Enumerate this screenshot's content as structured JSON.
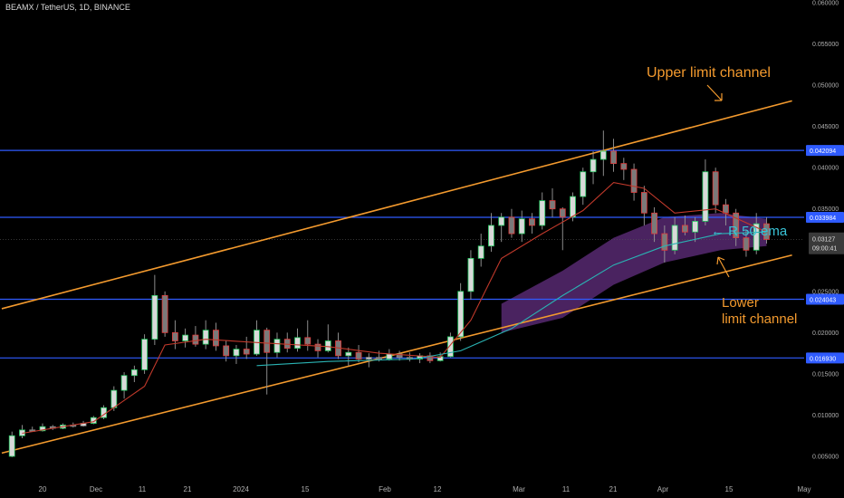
{
  "header": {
    "title": "BEAMX / TetherUS, 1D, BINANCE"
  },
  "colors": {
    "background": "#000000",
    "up_candle": "#22c55e",
    "down_candle": "#e23a3a",
    "doji_candle": "#8a8a8a",
    "channel": "#f39a2e",
    "level": "#2f5bff",
    "ema_short": "#c0392b",
    "ema_50": "#2ab3b3",
    "ribbon": "#7b3aa0",
    "text_muted": "#b0b0b0",
    "annotation_cyan": "#39c3d7"
  },
  "annotations": {
    "upper_channel": "Upper limit channel",
    "ema": "← R 50 ema",
    "lower_line1": "Lower",
    "lower_line2": "limit channel"
  },
  "price_labels": {
    "current_price": "0.03127",
    "countdown": "09:00:41"
  },
  "chart_data": {
    "type": "candlestick",
    "title": "BEAMX / TetherUS, 1D, BINANCE",
    "ylim": [
      0.0027,
      0.06
    ],
    "y_scale": "linear",
    "y_ticks": [
      "0.005000",
      "0.010000",
      "0.015000",
      "0.020000",
      "0.025000",
      "0.030000",
      "0.035000",
      "0.040000",
      "0.045000",
      "0.050000",
      "0.055000",
      "0.060000"
    ],
    "x_tick_labels": [
      "20",
      "Dec",
      "11",
      "21",
      "2024",
      "15",
      "Feb",
      "12",
      "Mar",
      "11",
      "21",
      "Apr",
      "15",
      "May"
    ],
    "horizontal_levels": [
      0.042094,
      0.033984,
      0.024043,
      0.01693
    ],
    "horizontal_level_labels": [
      "0.042094",
      "0.033984",
      "0.024043",
      "0.016930"
    ],
    "channel_upper": [
      [
        "2023-11-12",
        0.0229
      ],
      [
        "2024-04-15",
        0.0481
      ]
    ],
    "channel_lower": [
      [
        "2023-11-12",
        0.0054
      ],
      [
        "2024-04-15",
        0.0294
      ]
    ],
    "ohlc_daily_approx": [
      [
        "2023-11-14",
        0.005,
        0.008,
        0.0049,
        0.0075
      ],
      [
        "2023-11-16",
        0.0075,
        0.0088,
        0.0072,
        0.0082
      ],
      [
        "2023-11-18",
        0.0082,
        0.0086,
        0.008,
        0.0081
      ],
      [
        "2023-11-20",
        0.0081,
        0.009,
        0.008,
        0.0086
      ],
      [
        "2023-11-22",
        0.0086,
        0.0088,
        0.0082,
        0.0084
      ],
      [
        "2023-11-24",
        0.0084,
        0.009,
        0.0083,
        0.0088
      ],
      [
        "2023-11-26",
        0.0088,
        0.0091,
        0.0085,
        0.0087
      ],
      [
        "2023-11-28",
        0.0087,
        0.0093,
        0.0086,
        0.009
      ],
      [
        "2023-11-30",
        0.009,
        0.0099,
        0.0089,
        0.0097
      ],
      [
        "2023-12-02",
        0.0097,
        0.0112,
        0.0095,
        0.0109
      ],
      [
        "2023-12-04",
        0.0109,
        0.0135,
        0.0105,
        0.013
      ],
      [
        "2023-12-06",
        0.013,
        0.0152,
        0.012,
        0.0148
      ],
      [
        "2023-12-08",
        0.0148,
        0.016,
        0.014,
        0.0155
      ],
      [
        "2023-12-10",
        0.0155,
        0.0198,
        0.015,
        0.0192
      ],
      [
        "2023-12-12",
        0.0192,
        0.027,
        0.0185,
        0.0245
      ],
      [
        "2023-12-14",
        0.0245,
        0.025,
        0.0195,
        0.02
      ],
      [
        "2023-12-16",
        0.02,
        0.0215,
        0.018,
        0.019
      ],
      [
        "2023-12-18",
        0.019,
        0.0205,
        0.0182,
        0.0197
      ],
      [
        "2023-12-20",
        0.0197,
        0.0208,
        0.0183,
        0.0186
      ],
      [
        "2023-12-22",
        0.0186,
        0.0215,
        0.018,
        0.0203
      ],
      [
        "2023-12-24",
        0.0203,
        0.0212,
        0.0178,
        0.0184
      ],
      [
        "2023-12-26",
        0.0184,
        0.019,
        0.0165,
        0.0172
      ],
      [
        "2023-12-28",
        0.0172,
        0.0185,
        0.0162,
        0.018
      ],
      [
        "2023-12-30",
        0.018,
        0.0195,
        0.0168,
        0.0174
      ],
      [
        "2024-01-01",
        0.0174,
        0.0215,
        0.0172,
        0.0203
      ],
      [
        "2024-01-03",
        0.0203,
        0.0206,
        0.0125,
        0.0176
      ],
      [
        "2024-01-05",
        0.0176,
        0.02,
        0.017,
        0.0192
      ],
      [
        "2024-01-07",
        0.0192,
        0.02,
        0.0176,
        0.0181
      ],
      [
        "2024-01-09",
        0.0181,
        0.0205,
        0.0177,
        0.0194
      ],
      [
        "2024-01-11",
        0.0194,
        0.0215,
        0.0178,
        0.0186
      ],
      [
        "2024-01-13",
        0.0186,
        0.0192,
        0.017,
        0.0178
      ],
      [
        "2024-01-15",
        0.0178,
        0.021,
        0.0176,
        0.019
      ],
      [
        "2024-01-17",
        0.019,
        0.02,
        0.0168,
        0.0172
      ],
      [
        "2024-01-19",
        0.0172,
        0.0182,
        0.016,
        0.0176
      ],
      [
        "2024-01-21",
        0.0176,
        0.0185,
        0.0164,
        0.0168
      ],
      [
        "2024-01-23",
        0.0168,
        0.0175,
        0.0158,
        0.017
      ],
      [
        "2024-01-25",
        0.017,
        0.0178,
        0.0165,
        0.0168
      ],
      [
        "2024-01-27",
        0.0168,
        0.018,
        0.0166,
        0.0174
      ],
      [
        "2024-01-29",
        0.0174,
        0.0178,
        0.0166,
        0.017
      ],
      [
        "2024-01-31",
        0.017,
        0.0176,
        0.0165,
        0.0168
      ],
      [
        "2024-02-02",
        0.0168,
        0.0175,
        0.0163,
        0.0172
      ],
      [
        "2024-02-04",
        0.0172,
        0.0176,
        0.0163,
        0.0166
      ],
      [
        "2024-02-06",
        0.0166,
        0.0176,
        0.0165,
        0.0171
      ],
      [
        "2024-02-08",
        0.0171,
        0.02,
        0.017,
        0.0195
      ],
      [
        "2024-02-10",
        0.0195,
        0.026,
        0.019,
        0.025
      ],
      [
        "2024-02-12",
        0.025,
        0.03,
        0.024,
        0.029
      ],
      [
        "2024-02-14",
        0.029,
        0.032,
        0.028,
        0.0305
      ],
      [
        "2024-02-16",
        0.0305,
        0.0345,
        0.0298,
        0.033
      ],
      [
        "2024-02-18",
        0.033,
        0.0345,
        0.031,
        0.034
      ],
      [
        "2024-02-20",
        0.034,
        0.035,
        0.0315,
        0.032
      ],
      [
        "2024-02-22",
        0.032,
        0.0348,
        0.031,
        0.0338
      ],
      [
        "2024-02-24",
        0.0338,
        0.0345,
        0.032,
        0.033
      ],
      [
        "2024-02-26",
        0.033,
        0.037,
        0.0325,
        0.036
      ],
      [
        "2024-02-28",
        0.036,
        0.0375,
        0.034,
        0.035
      ],
      [
        "2024-03-01",
        0.035,
        0.0352,
        0.03,
        0.034
      ],
      [
        "2024-03-03",
        0.034,
        0.037,
        0.0335,
        0.0365
      ],
      [
        "2024-03-05",
        0.0365,
        0.04,
        0.0355,
        0.0395
      ],
      [
        "2024-03-07",
        0.0395,
        0.042,
        0.038,
        0.041
      ],
      [
        "2024-03-09",
        0.041,
        0.0445,
        0.039,
        0.042
      ],
      [
        "2024-03-11",
        0.042,
        0.0435,
        0.0395,
        0.0405
      ],
      [
        "2024-03-13",
        0.0405,
        0.0412,
        0.0385,
        0.0398
      ],
      [
        "2024-03-15",
        0.0398,
        0.0405,
        0.036,
        0.037
      ],
      [
        "2024-03-17",
        0.037,
        0.0378,
        0.033,
        0.0345
      ],
      [
        "2024-03-19",
        0.0345,
        0.0352,
        0.031,
        0.032
      ],
      [
        "2024-03-21",
        0.032,
        0.033,
        0.0285,
        0.03
      ],
      [
        "2024-03-23",
        0.03,
        0.034,
        0.0295,
        0.033
      ],
      [
        "2024-03-25",
        0.033,
        0.0342,
        0.0318,
        0.0322
      ],
      [
        "2024-03-27",
        0.0322,
        0.034,
        0.031,
        0.0335
      ],
      [
        "2024-03-29",
        0.0335,
        0.041,
        0.033,
        0.0395
      ],
      [
        "2024-03-31",
        0.0395,
        0.04,
        0.0345,
        0.0355
      ],
      [
        "2024-04-02",
        0.0355,
        0.0362,
        0.033,
        0.0345
      ],
      [
        "2024-04-04",
        0.0345,
        0.035,
        0.0305,
        0.0315
      ],
      [
        "2024-04-06",
        0.0315,
        0.0325,
        0.0292,
        0.03
      ],
      [
        "2024-04-08",
        0.03,
        0.0345,
        0.0295,
        0.0332
      ],
      [
        "2024-04-10",
        0.0332,
        0.034,
        0.0308,
        0.0313
      ]
    ],
    "series": [
      {
        "kind": "ema_short",
        "points": [
          [
            "2023-11-16",
            0.0078
          ],
          [
            "2023-11-30",
            0.0092
          ],
          [
            "2023-12-10",
            0.0135
          ],
          [
            "2023-12-14",
            0.0185
          ],
          [
            "2023-12-22",
            0.0192
          ],
          [
            "2024-01-01",
            0.0188
          ],
          [
            "2024-01-15",
            0.0183
          ],
          [
            "2024-01-25",
            0.0175
          ],
          [
            "2024-02-06",
            0.017
          ],
          [
            "2024-02-12",
            0.0215
          ],
          [
            "2024-02-18",
            0.029
          ],
          [
            "2024-02-26",
            0.032
          ],
          [
            "2024-03-05",
            0.0348
          ],
          [
            "2024-03-11",
            0.0382
          ],
          [
            "2024-03-17",
            0.0375
          ],
          [
            "2024-03-23",
            0.0345
          ],
          [
            "2024-03-31",
            0.035
          ],
          [
            "2024-04-10",
            0.0322
          ]
        ]
      },
      {
        "kind": "ema_50",
        "points": [
          [
            "2024-01-01",
            0.016
          ],
          [
            "2024-01-15",
            0.0165
          ],
          [
            "2024-02-01",
            0.0168
          ],
          [
            "2024-02-10",
            0.0178
          ],
          [
            "2024-02-20",
            0.0205
          ],
          [
            "2024-03-01",
            0.0245
          ],
          [
            "2024-03-11",
            0.0282
          ],
          [
            "2024-03-21",
            0.0305
          ],
          [
            "2024-04-01",
            0.032
          ],
          [
            "2024-04-10",
            0.0322
          ]
        ]
      },
      {
        "kind": "ema_ribbon_upper",
        "points": [
          [
            "2024-02-18",
            0.0235
          ],
          [
            "2024-03-01",
            0.0275
          ],
          [
            "2024-03-11",
            0.0315
          ],
          [
            "2024-03-21",
            0.034
          ],
          [
            "2024-04-01",
            0.0345
          ],
          [
            "2024-04-10",
            0.0338
          ]
        ]
      },
      {
        "kind": "ema_ribbon_lower",
        "points": [
          [
            "2024-02-18",
            0.02
          ],
          [
            "2024-03-01",
            0.0218
          ],
          [
            "2024-03-11",
            0.0258
          ],
          [
            "2024-03-21",
            0.0285
          ],
          [
            "2024-04-01",
            0.03
          ],
          [
            "2024-04-10",
            0.0305
          ]
        ]
      }
    ]
  }
}
